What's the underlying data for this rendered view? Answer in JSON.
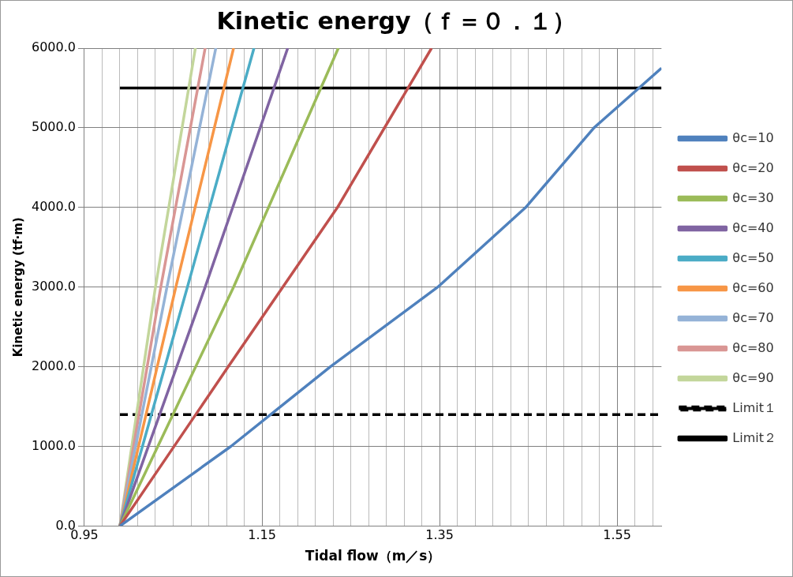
{
  "chart_data": {
    "type": "line",
    "title": "Kinetic energy（ｆ＝０．１）",
    "xlabel": "Tidal flow（m／s）",
    "ylabel": "Kinetic energy (tf·m)",
    "xlim": [
      0.95,
      1.6
    ],
    "ylim": [
      0,
      6000
    ],
    "xticks": [
      0.95,
      {
        "value": 0.97,
        "label": null
      },
      {
        "value": 0.99,
        "label": null
      },
      {
        "value": 1.01,
        "label": null
      },
      {
        "value": 1.03,
        "label": null
      },
      {
        "value": 1.05,
        "label": null
      },
      {
        "value": 1.07,
        "label": null
      },
      {
        "value": 1.09,
        "label": null
      },
      {
        "value": 1.11,
        "label": null
      },
      {
        "value": 1.13,
        "label": null
      },
      1.15,
      {
        "value": 1.17,
        "label": null
      },
      {
        "value": 1.19,
        "label": null
      },
      {
        "value": 1.21,
        "label": null
      },
      {
        "value": 1.23,
        "label": null
      },
      {
        "value": 1.25,
        "label": null
      },
      {
        "value": 1.27,
        "label": null
      },
      {
        "value": 1.29,
        "label": null
      },
      {
        "value": 1.31,
        "label": null
      },
      {
        "value": 1.33,
        "label": null
      },
      1.35,
      {
        "value": 1.37,
        "label": null
      },
      {
        "value": 1.39,
        "label": null
      },
      {
        "value": 1.41,
        "label": null
      },
      {
        "value": 1.43,
        "label": null
      },
      {
        "value": 1.45,
        "label": null
      },
      {
        "value": 1.47,
        "label": null
      },
      {
        "value": 1.49,
        "label": null
      },
      {
        "value": 1.51,
        "label": null
      },
      {
        "value": 1.53,
        "label": null
      },
      1.55,
      {
        "value": 1.57,
        "label": null
      },
      {
        "value": 1.59,
        "label": null
      }
    ],
    "yticks": [
      {
        "value": 0,
        "label": "0.0"
      },
      {
        "value": 1000,
        "label": "1000.0"
      },
      {
        "value": 2000,
        "label": "2000.0"
      },
      {
        "value": 3000,
        "label": "3000.0"
      },
      {
        "value": 4000,
        "label": "4000.0"
      },
      {
        "value": 5000,
        "label": "5000.0"
      },
      {
        "value": 6000,
        "label": "6000.0"
      }
    ],
    "grid": true,
    "legend": "right",
    "marker": "none",
    "line_style": "solid",
    "series": [
      {
        "name": "θc=10",
        "color": "#4f81bd",
        "x": [
          0.99,
          1.115,
          1.227,
          1.348,
          1.447,
          1.524,
          1.6
        ],
        "values": [
          0,
          1000,
          2000,
          3000,
          4000,
          5000,
          5750
        ]
      },
      {
        "name": "θc=20",
        "color": "#c0504d",
        "x": [
          0.99,
          1.112,
          1.235,
          1.341
        ],
        "values": [
          0,
          2000,
          4000,
          6000
        ]
      },
      {
        "name": "θc=30",
        "color": "#9bbb59",
        "x": [
          0.99,
          1.118,
          1.236
        ],
        "values": [
          0,
          3000,
          6000
        ]
      },
      {
        "name": "θc=40",
        "color": "#8064a2",
        "x": [
          0.99,
          1.086,
          1.179
        ],
        "values": [
          0,
          3000,
          6000
        ]
      },
      {
        "name": "θc=50",
        "color": "#4bacc6",
        "x": [
          0.99,
          1.066,
          1.141
        ],
        "values": [
          0,
          3000,
          6000
        ]
      },
      {
        "name": "θc=60",
        "color": "#f79646",
        "x": [
          0.99,
          1.053,
          1.118
        ],
        "values": [
          0,
          3000,
          6000
        ]
      },
      {
        "name": "θc=70",
        "color": "#95b3d7",
        "x": [
          0.99,
          1.043,
          1.098
        ],
        "values": [
          0,
          3000,
          6000
        ]
      },
      {
        "name": "θc=80",
        "color": "#d99694",
        "x": [
          0.99,
          1.036,
          1.086
        ],
        "values": [
          0,
          3000,
          6000
        ]
      },
      {
        "name": "θc=90",
        "color": "#c3d69b",
        "x": [
          0.99,
          1.03,
          1.075
        ],
        "values": [
          0,
          3000,
          6000
        ]
      },
      {
        "name": "Limit１",
        "color": "#000000",
        "line_style": "dashed",
        "x": [
          0.99,
          1.6
        ],
        "values": [
          1400,
          1400
        ]
      },
      {
        "name": "Limit２",
        "color": "#000000",
        "x": [
          0.99,
          1.6
        ],
        "values": [
          5500,
          5500
        ]
      }
    ]
  }
}
